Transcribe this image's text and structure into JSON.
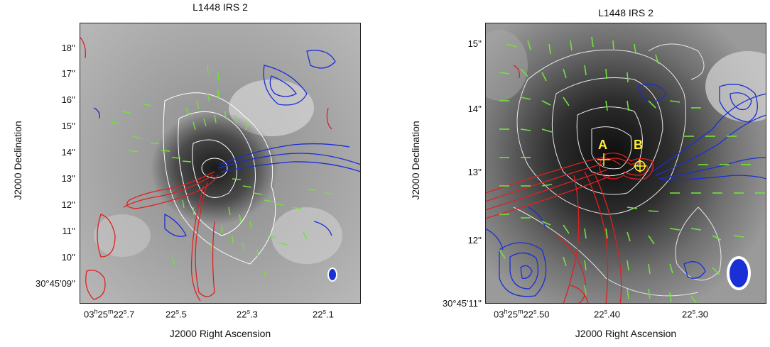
{
  "left_panel": {
    "title": "L1448 IRS 2",
    "xlabel": "J2000 Right Ascension",
    "ylabel": "J2000 Declination",
    "yticks": [
      "18''",
      "17''",
      "16''",
      "15''",
      "14''",
      "13''",
      "12''",
      "11''",
      "10''",
      "30°45'09''"
    ],
    "xticks": [
      {
        "main": "03",
        "h": "h",
        "m_val": "25",
        "m": "m",
        "s_val": "22",
        "s": "s",
        "frac": ".7"
      },
      {
        "main": "22",
        "s": "s",
        "frac": ".5"
      },
      {
        "main": "22",
        "s": "s",
        "frac": ".3"
      },
      {
        "main": "22",
        "s": "s",
        "frac": ".1"
      }
    ]
  },
  "right_panel": {
    "title": "L1448 IRS 2",
    "xlabel": "J2000 Right Ascension",
    "ylabel": "J2000 Declination",
    "yticks": [
      "15''",
      "14''",
      "13''",
      "12''",
      "30°45'11''"
    ],
    "xticks": [
      {
        "main": "03",
        "h": "h",
        "m_val": "25",
        "m": "m",
        "s_val": "22",
        "s": "s",
        "frac": ".50"
      },
      {
        "main": "22",
        "s": "s",
        "frac": ".40"
      },
      {
        "main": "22",
        "s": "s",
        "frac": ".30"
      }
    ],
    "source_a": "A",
    "source_b": "B"
  },
  "colors": {
    "red_contour": "#e02020",
    "blue_contour": "#1a2fd6",
    "vectors": "#6fe33a",
    "stokes_contour": "#ffffff",
    "markers": "#ffee33"
  }
}
